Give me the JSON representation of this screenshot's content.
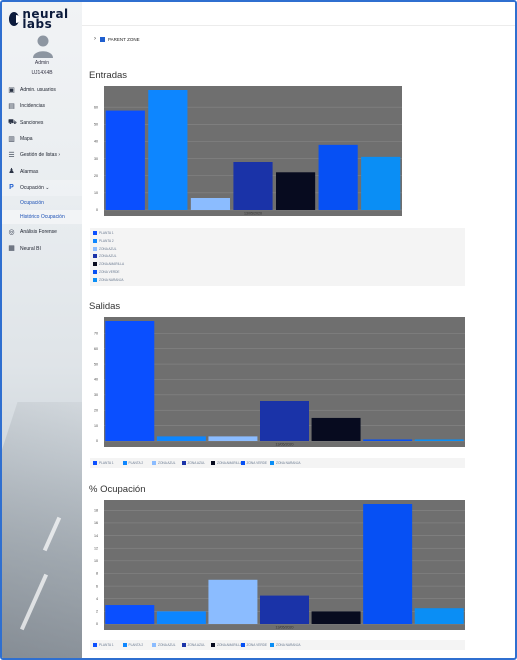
{
  "app": {
    "logo_text": "neural labs"
  },
  "user": {
    "name": "Admin",
    "id": "UJ14X4B"
  },
  "sidebar": {
    "items": [
      {
        "label": "Admin. usuarios",
        "icon": "user-admin-icon"
      },
      {
        "label": "Incidencias",
        "icon": "book-icon"
      },
      {
        "label": "Sanciones",
        "icon": "car-icon"
      },
      {
        "label": "Mapa",
        "icon": "map-icon"
      },
      {
        "label": "Gestión de listas ›",
        "icon": "list-icon"
      },
      {
        "label": "Alarmas",
        "icon": "bell-icon"
      },
      {
        "label": "Ocupación ⌄",
        "icon": "parking-icon"
      },
      {
        "label": "Análisis Forense",
        "icon": "forensic-icon"
      },
      {
        "label": "Neural BI",
        "icon": "chart-icon"
      }
    ],
    "submenu": [
      {
        "label": "Ocupación"
      },
      {
        "label": "Histórico Ocupación"
      }
    ]
  },
  "breadcrumb": {
    "label": "PARENT ZONE"
  },
  "colors": {
    "PLANTA 1": "#0a4fff",
    "PLANTA 2": "#0d86ff",
    "ZONA AZUL": "#8bbcff",
    "ZONA AZUL 2": "#1a33a8",
    "ZONA AMARILLA": "#070b1f",
    "ZONA VERDE": "#0650f4",
    "ZONA NARANJA": "#0a8ef5"
  },
  "chart_data": [
    {
      "type": "bar",
      "title": "Entradas",
      "categories": [
        "13/05/2020"
      ],
      "ylim": [
        0,
        70
      ],
      "yticks": [
        0,
        10,
        20,
        30,
        40,
        50,
        60
      ],
      "grid": true,
      "legend_position": "bottom-vertical",
      "series": [
        {
          "name": "PLANTA 1",
          "values": [
            58
          ]
        },
        {
          "name": "PLANTA 2",
          "values": [
            70
          ]
        },
        {
          "name": "ZONA AZUL",
          "values": [
            7
          ]
        },
        {
          "name": "ZONA AZUL",
          "values": [
            28
          ]
        },
        {
          "name": "ZONA AMARILLA",
          "values": [
            22
          ]
        },
        {
          "name": "ZONA VERDE",
          "values": [
            38
          ]
        },
        {
          "name": "ZONA NARANJA",
          "values": [
            31
          ]
        }
      ]
    },
    {
      "type": "bar",
      "title": "Salidas",
      "categories": [
        "13/05/2020"
      ],
      "ylim": [
        0,
        78
      ],
      "yticks": [
        0,
        10,
        20,
        30,
        40,
        50,
        60,
        70
      ],
      "grid": true,
      "legend_position": "bottom",
      "series": [
        {
          "name": "PLANTA 1",
          "values": [
            78
          ]
        },
        {
          "name": "PLANTA 2",
          "values": [
            3
          ]
        },
        {
          "name": "ZONA AZUL",
          "values": [
            3
          ]
        },
        {
          "name": "ZONA AZUL",
          "values": [
            26
          ]
        },
        {
          "name": "ZONA AMARILLA",
          "values": [
            15
          ]
        },
        {
          "name": "ZONA VERDE",
          "values": [
            1
          ]
        },
        {
          "name": "ZONA NARANJA",
          "values": [
            1
          ]
        }
      ]
    },
    {
      "type": "bar",
      "title": "% Ocupación",
      "categories": [
        "13/05/2020"
      ],
      "ylim": [
        0,
        19
      ],
      "yticks": [
        0,
        2,
        4,
        6,
        8,
        10,
        12,
        14,
        16,
        18
      ],
      "grid": true,
      "legend_position": "bottom",
      "series": [
        {
          "name": "PLANTA 1",
          "values": [
            3
          ]
        },
        {
          "name": "PLANTA 2",
          "values": [
            2
          ]
        },
        {
          "name": "ZONA AZUL",
          "values": [
            7
          ]
        },
        {
          "name": "ZONA AZUL",
          "values": [
            4.5
          ]
        },
        {
          "name": "ZONA AMARILLA",
          "values": [
            2
          ]
        },
        {
          "name": "ZONA VERDE",
          "values": [
            19
          ]
        },
        {
          "name": "ZONA NARANJA",
          "values": [
            2.5
          ]
        }
      ]
    }
  ]
}
